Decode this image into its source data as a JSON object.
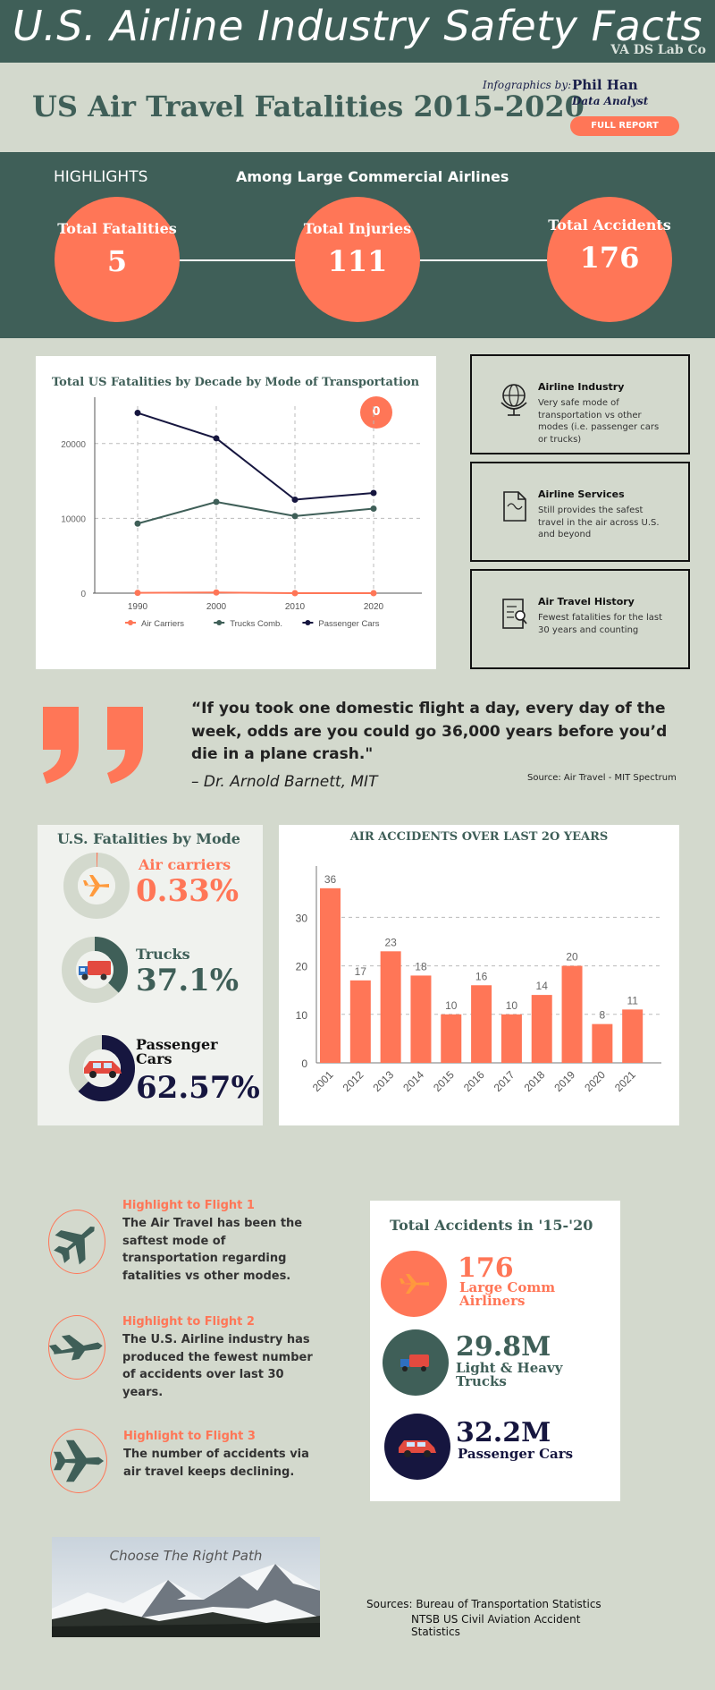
{
  "header": {
    "title": "U.S. Airline Industry Safety Facts",
    "lab": "VA DS Lab Co",
    "subtitle": "US Air Travel Fatalities 2015-2020",
    "byline_label": "Infographics by:",
    "author": "Phil Han",
    "role": "Data Analyst",
    "report_button": "FULL REPORT"
  },
  "highlights": {
    "title": "HIGHLIGHTS",
    "subtitle": "Among Large Commercial Airlines",
    "items": [
      {
        "label": "Total Fatalities",
        "value": "5"
      },
      {
        "label": "Total Injuries",
        "value": "111"
      },
      {
        "label": "Total Accidents",
        "value": "176"
      }
    ]
  },
  "line_chart": {
    "title": "Total US Fatalities by Decade by Mode of Transportation",
    "badge": "0"
  },
  "info_cards": [
    {
      "title": "Airline Industry",
      "text": "Very safe mode of transportation vs other modes (i.e. passenger cars or trucks)",
      "icon": "globe-icon"
    },
    {
      "title": "Airline Services",
      "text": "Still provides the safest travel in the air across U.S. and beyond",
      "icon": "document-icon"
    },
    {
      "title": "Air Travel History",
      "text": "Fewest fatalities for the last 30 years and counting",
      "icon": "report-icon"
    }
  ],
  "quote": {
    "text": "“If you took one domestic flight a day, every day of the week, odds are you could go 36,000 years before you’d die in a plane crash.\"",
    "author": "– Dr. Arnold Barnett, MIT",
    "source": "Source: Air Travel - MIT Spectrum"
  },
  "fatalities_by_mode": {
    "title": "U.S. Fatalities by Mode",
    "items": [
      {
        "label": "Air carriers",
        "value": "0.33%",
        "share": 0.0033,
        "color": "#ff7657"
      },
      {
        "label": "Trucks",
        "value": "37.1%",
        "share": 0.371,
        "color": "#3f5f58"
      },
      {
        "label": "Passenger Cars",
        "value": "62.57%",
        "share": 0.6257,
        "color": "#16163f"
      }
    ]
  },
  "bar_chart": {
    "title": "AIR ACCIDENTS OVER LAST 2O YEARS"
  },
  "flights": [
    {
      "title": "Highlight to Flight 1",
      "text": "The Air Travel has been the saftest mode of transportation regarding fatalities vs other modes."
    },
    {
      "title": "Highlight to Flight 2",
      "text": "The U.S. Airline industry has produced the fewest number of accidents over last 30 years."
    },
    {
      "title": "Highlight to Flight 3",
      "text": "The number of accidents via air travel keeps declining."
    }
  ],
  "total_accidents": {
    "title": "Total Accidents in '15-'20",
    "items": [
      {
        "value": "176",
        "label": "Large Comm Airliners",
        "color": "#ff7657"
      },
      {
        "value": "29.8M",
        "label": "Light & Heavy Trucks",
        "color": "#3f5f58"
      },
      {
        "value": "32.2M",
        "label": "Passenger Cars",
        "color": "#16163f"
      }
    ]
  },
  "footer": {
    "photo_caption": "Choose The Right Path",
    "sources_1": "Sources: Bureau of Transportation Statistics",
    "sources_2": "NTSB US Civil Aviation Accident Statistics"
  },
  "chart_data": [
    {
      "type": "line",
      "title": "Total US Fatalities by Decade by Mode of Transportation",
      "x": [
        1990,
        2000,
        2010,
        2020
      ],
      "series": [
        {
          "name": "Air Carriers",
          "values": [
            40,
            90,
            0,
            0
          ],
          "color": "#ff7657"
        },
        {
          "name": "Trucks Comb.",
          "values": [
            9300,
            12200,
            10300,
            11300
          ],
          "color": "#3f5f58"
        },
        {
          "name": "Passenger Cars",
          "values": [
            24100,
            20700,
            12500,
            13400
          ],
          "color": "#16163f"
        }
      ],
      "yticks": [
        0,
        10000,
        20000
      ],
      "ylim": [
        0,
        25000
      ],
      "grid": true,
      "legend": "bottom"
    },
    {
      "type": "bar",
      "title": "AIR ACCIDENTS OVER LAST 2O YEARS",
      "categories": [
        "2001",
        "2012",
        "2013",
        "2014",
        "2015",
        "2016",
        "2017",
        "2018",
        "2019",
        "2020",
        "2021"
      ],
      "values": [
        36,
        17,
        23,
        18,
        10,
        16,
        10,
        14,
        20,
        8,
        11
      ],
      "yticks": [
        0,
        10,
        20,
        30
      ],
      "ylim": [
        0,
        38
      ],
      "color": "#ff7657",
      "grid": true
    }
  ]
}
